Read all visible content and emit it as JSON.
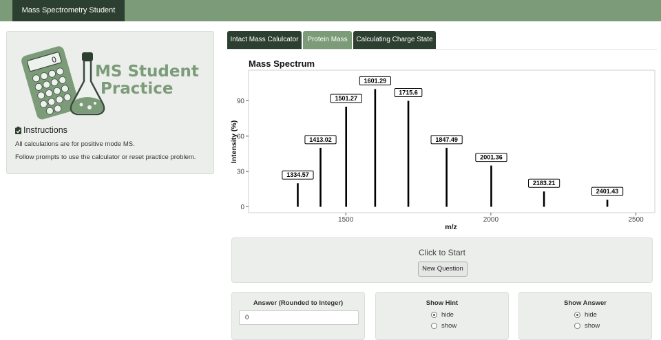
{
  "navbar": {
    "brand": "Mass Spectrometry Student Practice"
  },
  "sidebar": {
    "logo_line1": "MS Student",
    "logo_line2": "Practice",
    "calculator_display": "0",
    "instructions_title": "Instructions",
    "instructions_p1": "All calculations are for positive mode MS.",
    "instructions_p2": "Follow prompts to use the calculator or reset practice problem."
  },
  "tabs": [
    {
      "label": "Intact Mass Calulcator",
      "active": false
    },
    {
      "label": "Protein Mass",
      "active": true
    },
    {
      "label": "Calculating Charge State",
      "active": false
    }
  ],
  "chart_data": {
    "type": "bar",
    "title": "Mass Spectrum",
    "xlabel": "m/z",
    "ylabel": "Intensity (%)",
    "xlim": [
      1165,
      2565
    ],
    "ylim": [
      -5,
      116
    ],
    "x_ticks": [
      1500,
      2000,
      2500
    ],
    "y_ticks": [
      0,
      30,
      60,
      90
    ],
    "grid": false,
    "peaks": [
      {
        "mz": 1334.57,
        "intensity": 20,
        "label": "1334.57"
      },
      {
        "mz": 1413.02,
        "intensity": 50,
        "label": "1413.02"
      },
      {
        "mz": 1501.27,
        "intensity": 85,
        "label": "1501.27"
      },
      {
        "mz": 1601.29,
        "intensity": 100,
        "label": "1601.29"
      },
      {
        "mz": 1715.6,
        "intensity": 90,
        "label": "1715.6"
      },
      {
        "mz": 1847.49,
        "intensity": 50,
        "label": "1847.49"
      },
      {
        "mz": 2001.36,
        "intensity": 35,
        "label": "2001.36"
      },
      {
        "mz": 2183.21,
        "intensity": 13,
        "label": "2183.21"
      },
      {
        "mz": 2401.43,
        "intensity": 6,
        "label": "2401.43"
      }
    ]
  },
  "start_panel": {
    "text": "Click to Start",
    "button_label": "New Question"
  },
  "answer": {
    "title": "Answer (Rounded to Integer)",
    "value": "0"
  },
  "hint": {
    "title": "Show Hint",
    "options": [
      "hide",
      "show"
    ],
    "selected": "hide"
  },
  "show_answer": {
    "title": "Show Answer",
    "options": [
      "hide",
      "show"
    ],
    "selected": "hide"
  },
  "colors": {
    "nav": "#7c9b79",
    "dark": "#2c3f31",
    "panel": "#ebeeeb"
  }
}
